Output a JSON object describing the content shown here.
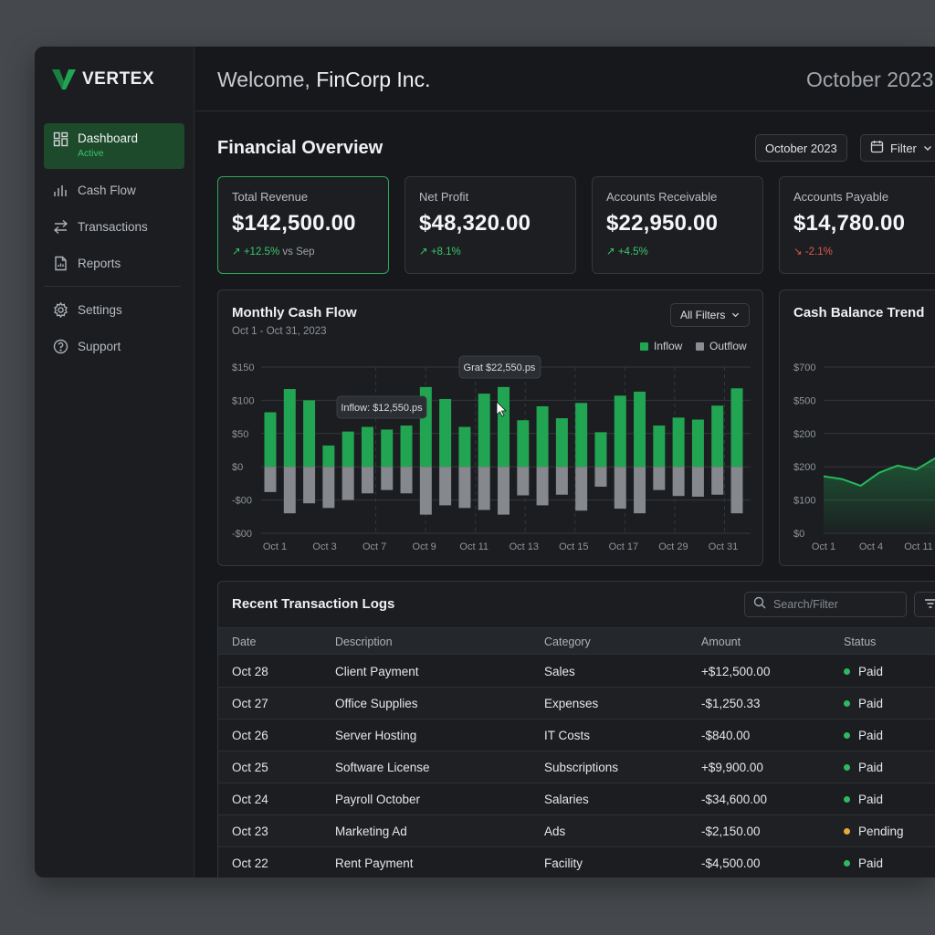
{
  "app": {
    "name": "VERTEX"
  },
  "header": {
    "welcome_prefix": "Welcome,",
    "company": "FinCorp Inc.",
    "date": "October 2023"
  },
  "sidebar": {
    "items": [
      {
        "label": "Dashboard",
        "sub": "Active",
        "icon": "grid-icon"
      },
      {
        "label": "Cash Flow",
        "icon": "bar-chart-icon"
      },
      {
        "label": "Transactions",
        "icon": "arrows-swap-icon"
      },
      {
        "label": "Reports",
        "icon": "document-icon"
      },
      {
        "label": "Settings",
        "icon": "gear-icon"
      },
      {
        "label": "Support",
        "icon": "help-icon"
      }
    ]
  },
  "overview": {
    "title": "Financial Overview",
    "period_button": "October 2023",
    "filter_button": "Filter"
  },
  "kpis": [
    {
      "label": "Total Revenue",
      "value": "$142,500.00",
      "delta": "+12.5%",
      "delta_suffix": "vs Sep",
      "trend": "up"
    },
    {
      "label": "Net Profit",
      "value": "$48,320.00",
      "delta": "+8.1%",
      "delta_suffix": "",
      "trend": "up"
    },
    {
      "label": "Accounts Receivable",
      "value": "$22,950.00",
      "delta": "+4.5%",
      "delta_suffix": "",
      "trend": "up"
    },
    {
      "label": "Accounts Payable",
      "value": "$14,780.00",
      "delta": "-2.1%",
      "delta_suffix": "",
      "trend": "down"
    }
  ],
  "cashflow": {
    "title": "Monthly Cash Flow",
    "subtitle": "Oct 1 - Oct 31, 2023",
    "filter_button": "All Filters",
    "legend": {
      "inflow": "Inflow",
      "outflow": "Outflow"
    },
    "tooltip_1": "Inflow: $12,550.ps",
    "tooltip_2": "Grat $22,550.ps"
  },
  "balance": {
    "title": "Cash Balance Trend"
  },
  "transactions": {
    "title": "Recent Transaction Logs",
    "search_placeholder": "Search/Filter",
    "columns": [
      "Date",
      "Description",
      "Category",
      "Amount",
      "Status"
    ],
    "rows": [
      {
        "date": "Oct 28",
        "description": "Client Payment",
        "category": "Sales",
        "amount": "+$12,500.00",
        "status": "Paid"
      },
      {
        "date": "Oct 27",
        "description": "Office Supplies",
        "category": "Expenses",
        "amount": "-$1,250.33",
        "status": "Paid"
      },
      {
        "date": "Oct 26",
        "description": "Server Hosting",
        "category": "IT Costs",
        "amount": "-$840.00",
        "status": "Paid"
      },
      {
        "date": "Oct 25",
        "description": "Software License",
        "category": "Subscriptions",
        "amount": "+$9,900.00",
        "status": "Paid"
      },
      {
        "date": "Oct 24",
        "description": "Payroll October",
        "category": "Salaries",
        "amount": "-$34,600.00",
        "status": "Paid"
      },
      {
        "date": "Oct 23",
        "description": "Marketing Ad",
        "category": "Ads",
        "amount": "-$2,150.00",
        "status": "Pending"
      },
      {
        "date": "Oct 22",
        "description": "Rent Payment",
        "category": "Facility",
        "amount": "-$4,500.00",
        "status": "Paid"
      }
    ]
  },
  "colors": {
    "accent": "#22a552",
    "outflow": "#8a8d91",
    "paid": "#2fb862",
    "pending": "#e9a93a",
    "negative": "#e0574f"
  },
  "chart_data": [
    {
      "type": "bar",
      "title": "Monthly Cash Flow",
      "subtitle": "Oct 1 - Oct 31, 2023",
      "x_tick_labels": [
        "Oct 1",
        "Oct 3",
        "Oct 7",
        "Oct 9",
        "Oct 11",
        "Oct 13",
        "Oct 15",
        "Oct 17",
        "Oct 29",
        "Oct 31"
      ],
      "y_tick_labels": [
        "$150",
        "$100",
        "$50",
        "$0",
        "-$00",
        "-$00"
      ],
      "ylim": [
        -100,
        150
      ],
      "grid": true,
      "legend_position": "top-right",
      "series": [
        {
          "name": "Inflow",
          "values": [
            82,
            117,
            100,
            32,
            53,
            60,
            56,
            62,
            120,
            102,
            60,
            110,
            120,
            70,
            91,
            73,
            96,
            52,
            107,
            113,
            62,
            74,
            71,
            92,
            118
          ]
        },
        {
          "name": "Outflow",
          "values": [
            -38,
            -70,
            -55,
            -62,
            -50,
            -40,
            -35,
            -40,
            -72,
            -58,
            -62,
            -65,
            -72,
            -43,
            -58,
            -42,
            -66,
            -30,
            -63,
            -70,
            -35,
            -44,
            -45,
            -42,
            -70
          ]
        }
      ]
    },
    {
      "type": "area",
      "title": "Cash Balance Trend",
      "x_tick_labels": [
        "Oct 1",
        "Oct 4",
        "Oct 11"
      ],
      "y_tick_labels": [
        "$700",
        "$500",
        "$200",
        "$200",
        "$100",
        "$0"
      ],
      "grid": true,
      "y": [
        240,
        228,
        200,
        255,
        285,
        268,
        315,
        355
      ]
    }
  ]
}
